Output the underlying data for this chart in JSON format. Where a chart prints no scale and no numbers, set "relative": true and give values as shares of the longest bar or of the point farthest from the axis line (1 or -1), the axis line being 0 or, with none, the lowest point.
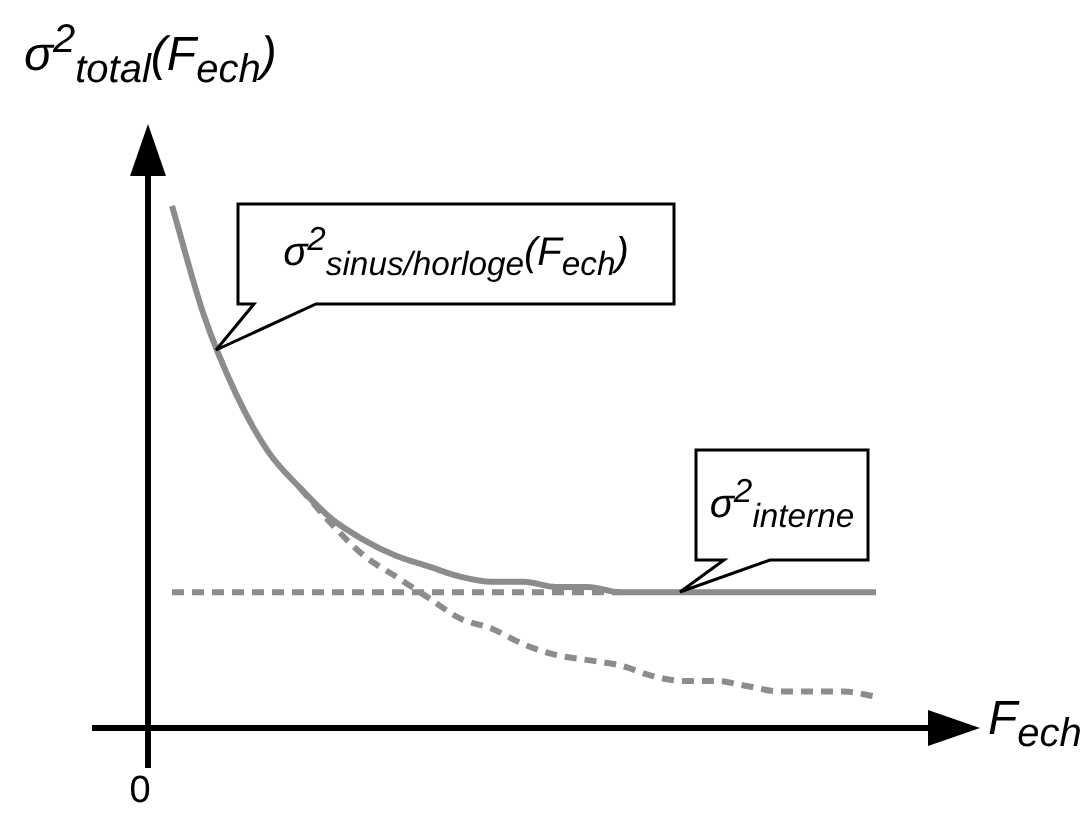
{
  "chart_data": {
    "type": "line",
    "relative": true,
    "marker": "none",
    "legend": false,
    "ylabel": "σ$^{2}$$_{total}$(F$_{ech}$)",
    "xlabel": "F$_{ech}$",
    "annotations": [
      "σ$^{2}$$_{sinus/horloge}$(F$_{ech}$)",
      "σ$^{2}$$_{interne}$",
      "0"
    ],
    "categories": [
      null,
      null,
      null,
      null,
      null,
      null,
      null,
      null,
      null,
      null,
      null,
      null,
      null,
      null,
      null,
      null,
      null,
      null,
      null,
      null,
      null,
      null,
      null
    ],
    "series": [
      {
        "color": "#8c8c8c",
        "line_style": "solid",
        "values": [
          1.0,
          0.79,
          0.64,
          0.53,
          0.46,
          0.4,
          0.36,
          0.33,
          0.31,
          0.29,
          0.28,
          0.28,
          0.27,
          0.27,
          0.26,
          0.26,
          0.26,
          0.26,
          0.26,
          0.26,
          0.26,
          0.26,
          0.26
        ]
      },
      {
        "color": "#8c8c8c",
        "line_style": "dashed",
        "values": [
          null,
          null,
          null,
          null,
          0.46,
          0.39,
          0.33,
          0.29,
          0.25,
          0.21,
          0.19,
          0.16,
          0.14,
          0.13,
          0.12,
          0.1,
          0.09,
          0.09,
          0.08,
          0.07,
          0.07,
          0.07,
          0.06
        ]
      },
      {
        "color": "#8c8c8c",
        "line_style": "dashed",
        "values": [
          0.26,
          0.26,
          0.26,
          0.26,
          0.26,
          0.26,
          0.26,
          0.26,
          0.26,
          0.26,
          0.26,
          0.26,
          0.26,
          0.26,
          0.26,
          null,
          null,
          null,
          null,
          null,
          null,
          null,
          null
        ]
      }
    ]
  }
}
